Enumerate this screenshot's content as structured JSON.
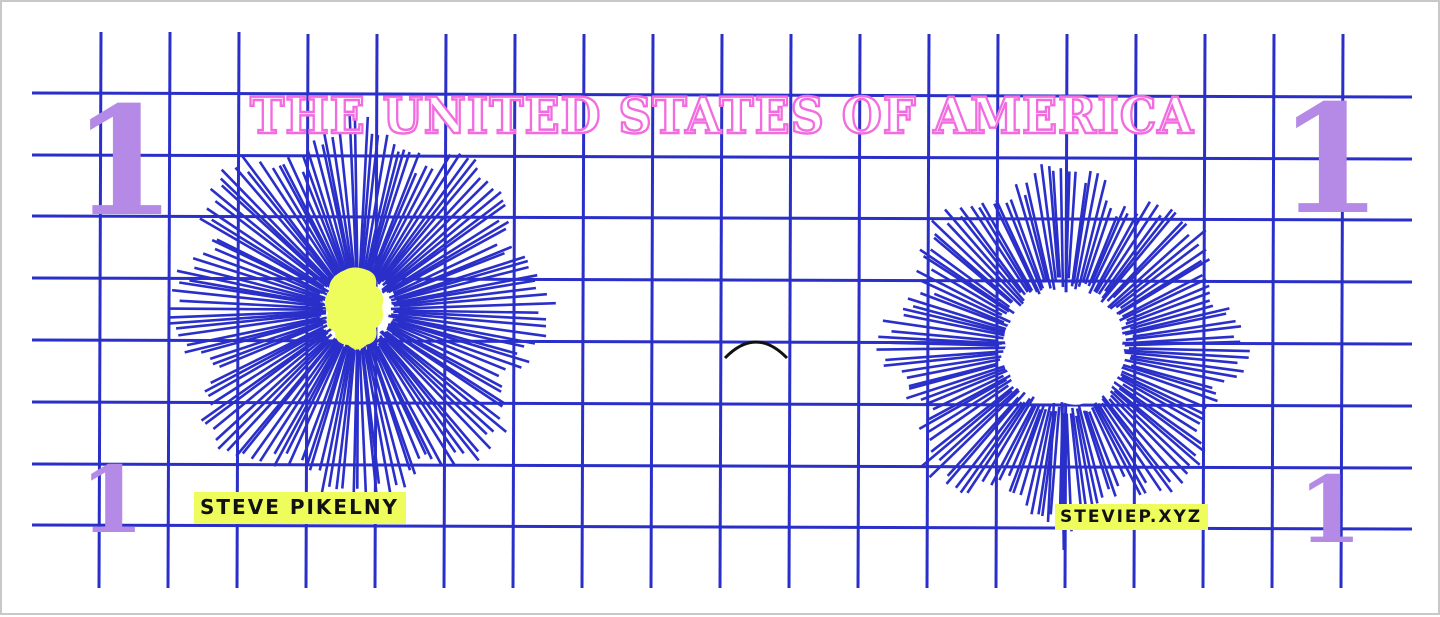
{
  "bill": {
    "title": "THE UNITED STATES OF AMERICA",
    "denomination": "1",
    "name_label": "STEVE PIKELNY",
    "url_label": "STEVIEP.XYZ"
  },
  "colors": {
    "grid": "#2a2fc9",
    "title_outline": "#f26ce0",
    "denomination": "#b48ae6",
    "highlight": "#eefc5c",
    "face_arc": "#111111",
    "border": "#c8c8c8"
  }
}
